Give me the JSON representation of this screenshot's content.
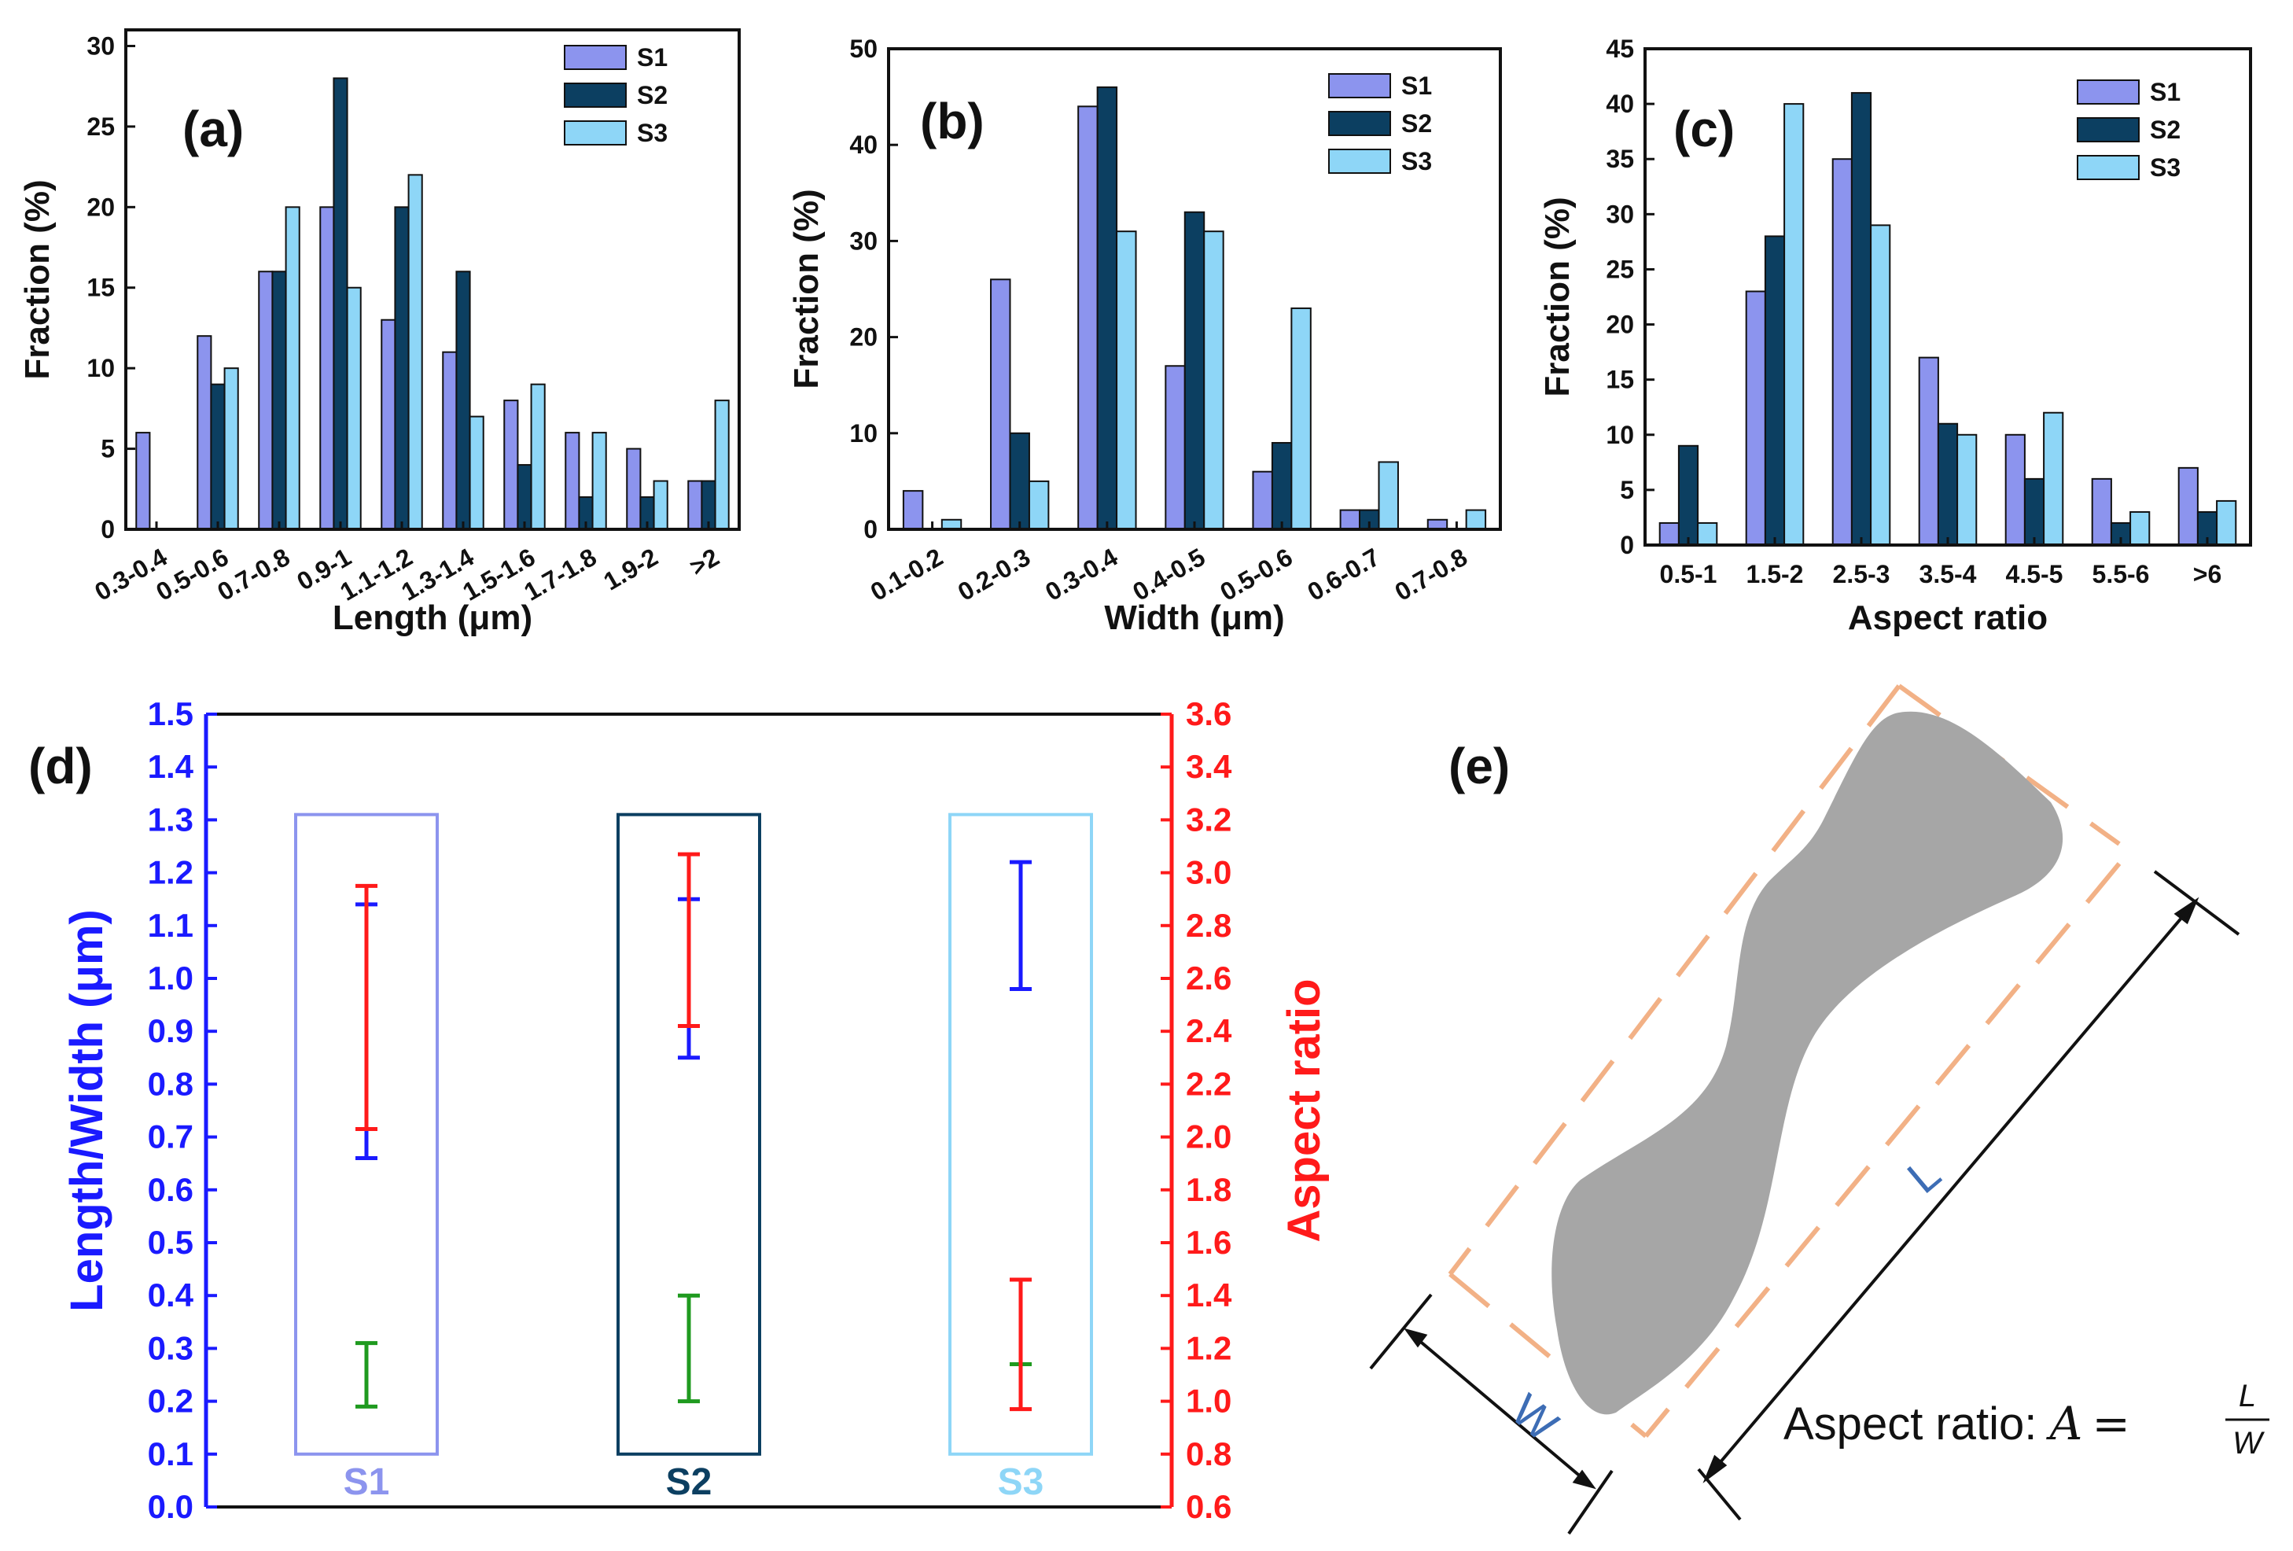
{
  "colors": {
    "S1": "#8c94ee",
    "S2": "#0c3f61",
    "S3": "#8ed6f7",
    "length": "#1a1aff",
    "width": "#1f9a1f",
    "aspect": "#ff1a1a",
    "guide": "#f2b186",
    "particle": "#a6a6a6",
    "letter": "#3d6db5"
  },
  "chart_data": [
    {
      "panel": "(a)",
      "type": "bar",
      "xlabel": "Length (μm)",
      "ylabel": "Fraction (%)",
      "ylim": [
        0,
        31
      ],
      "yticks": [
        0,
        5,
        10,
        15,
        20,
        25,
        30
      ],
      "categories": [
        "0.3-0.4",
        "0.5-0.6",
        "0.7-0.8",
        "0.9-1",
        "1.1-1.2",
        "1.3-1.4",
        "1.5-1.6",
        "1.7-1.8",
        "1.9-2",
        ">2"
      ],
      "tick_rotation": -30,
      "legend": "top-right",
      "series": [
        {
          "name": "S1",
          "values": [
            6,
            12,
            16,
            20,
            13,
            11,
            8,
            6,
            5,
            3
          ]
        },
        {
          "name": "S2",
          "values": [
            0,
            9,
            16,
            28,
            20,
            16,
            4,
            2,
            2,
            3
          ]
        },
        {
          "name": "S3",
          "values": [
            0,
            10,
            20,
            15,
            22,
            7,
            9,
            6,
            3,
            8
          ]
        }
      ]
    },
    {
      "panel": "(b)",
      "type": "bar",
      "xlabel": "Width (μm)",
      "ylabel": "Fraction (%)",
      "ylim": [
        0,
        50
      ],
      "yticks": [
        0,
        10,
        20,
        30,
        40,
        50
      ],
      "categories": [
        "0.1-0.2",
        "0.2-0.3",
        "0.3-0.4",
        "0.4-0.5",
        "0.5-0.6",
        "0.6-0.7",
        "0.7-0.8"
      ],
      "tick_rotation": -30,
      "legend": "top-right",
      "series": [
        {
          "name": "S1",
          "values": [
            4,
            26,
            44,
            17,
            6,
            2,
            1
          ]
        },
        {
          "name": "S2",
          "values": [
            0,
            10,
            46,
            33,
            9,
            2,
            0
          ]
        },
        {
          "name": "S3",
          "values": [
            1,
            5,
            31,
            31,
            23,
            7,
            2
          ]
        }
      ]
    },
    {
      "panel": "(c)",
      "type": "bar",
      "xlabel": "Aspect ratio",
      "ylabel": "Fraction (%)",
      "ylim": [
        0,
        45
      ],
      "yticks": [
        0,
        5,
        10,
        15,
        20,
        25,
        30,
        35,
        40,
        45
      ],
      "categories": [
        "0.5-1",
        "1.5-2",
        "2.5-3",
        "3.5-4",
        "4.5-5",
        "5.5-6",
        ">6"
      ],
      "tick_rotation": 0,
      "legend": "top-right",
      "series": [
        {
          "name": "S1",
          "values": [
            2,
            23,
            35,
            17,
            10,
            6,
            7
          ]
        },
        {
          "name": "S2",
          "values": [
            9,
            28,
            41,
            11,
            6,
            2,
            3
          ]
        },
        {
          "name": "S3",
          "values": [
            2,
            40,
            29,
            10,
            12,
            3,
            4
          ]
        }
      ]
    },
    {
      "panel": "(d)",
      "type": "errorbar",
      "ylabel_left": "Length/Width (μm)",
      "ylabel_right": "Aspect ratio",
      "ylim_left": [
        0,
        1.5
      ],
      "yticks_left": [
        "0.0",
        "0.1",
        "0.2",
        "0.3",
        "0.4",
        "0.5",
        "0.6",
        "0.7",
        "0.8",
        "0.9",
        "1.0",
        "1.1",
        "1.2",
        "1.3",
        "1.4",
        "1.5"
      ],
      "ylim_right": [
        0.6,
        3.6
      ],
      "yticks_right": [
        "0.6",
        "0.8",
        "1.0",
        "1.2",
        "1.4",
        "1.6",
        "1.8",
        "2.0",
        "2.2",
        "2.4",
        "2.6",
        "2.8",
        "3.0",
        "3.2",
        "3.4",
        "3.6"
      ],
      "samples": [
        {
          "name": "S1",
          "length": [
            0.66,
            1.14
          ],
          "width": [
            0.19,
            0.31
          ],
          "aspect": [
            2.03,
            2.95
          ]
        },
        {
          "name": "S2",
          "length": [
            0.85,
            1.15
          ],
          "width": [
            0.2,
            0.4
          ],
          "aspect": [
            2.42,
            3.07
          ]
        },
        {
          "name": "S3",
          "length": [
            0.98,
            1.22
          ],
          "width": [
            0.27,
            0.43
          ],
          "aspect": [
            0.97,
            1.46
          ]
        }
      ]
    }
  ],
  "diagram": {
    "panel": "(e)",
    "label_length": "L",
    "label_width": "W",
    "equation_text": "Aspect ratio: ",
    "equation_var": "A",
    "equation_eq": "=",
    "equation_num": "L",
    "equation_den": "W"
  }
}
